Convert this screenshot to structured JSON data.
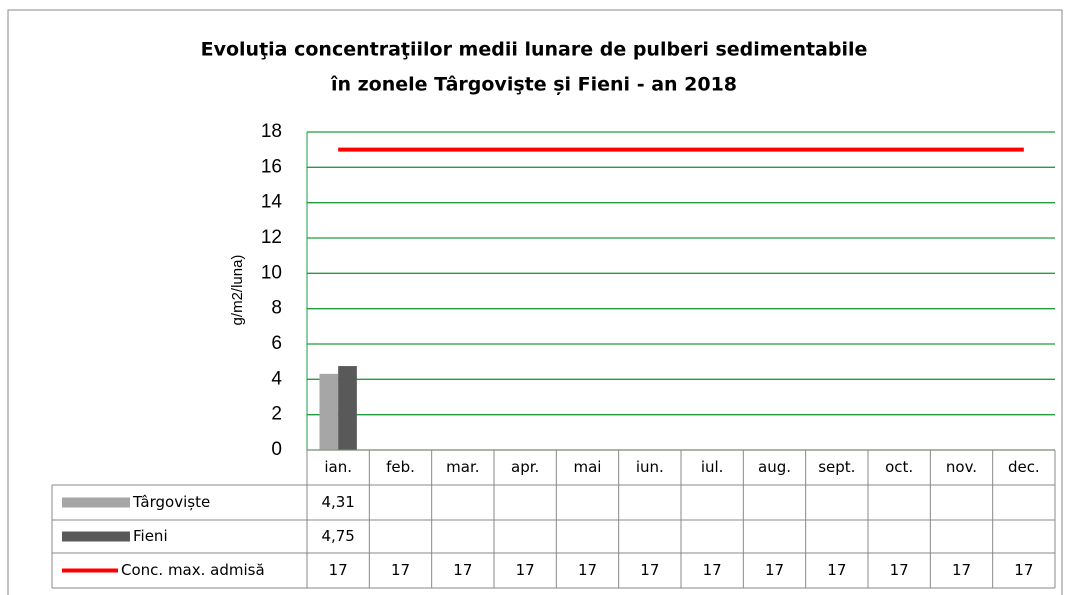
{
  "chart_data": {
    "type": "bar",
    "title": [
      "Evoluţia concentraţiilor medii lunare de pulberi sedimentabile",
      "în zonele Târgovişte și Fieni - an 2018"
    ],
    "y_label": "g/m2/luna)",
    "categories": [
      "ian.",
      "feb.",
      "mar.",
      "apr.",
      "mai",
      "iun.",
      "iul.",
      "aug.",
      "sept.",
      "oct.",
      "nov.",
      "dec."
    ],
    "series": [
      {
        "name": "Târgoviște",
        "type": "bar",
        "color": "#a6a6a6",
        "values": [
          4.31,
          null,
          null,
          null,
          null,
          null,
          null,
          null,
          null,
          null,
          null,
          null
        ],
        "value_labels": [
          "4,31",
          null,
          null,
          null,
          null,
          null,
          null,
          null,
          null,
          null,
          null,
          null
        ]
      },
      {
        "name": "Fieni",
        "type": "bar",
        "color": "#595959",
        "values": [
          4.75,
          null,
          null,
          null,
          null,
          null,
          null,
          null,
          null,
          null,
          null,
          null
        ],
        "value_labels": [
          "4,75",
          null,
          null,
          null,
          null,
          null,
          null,
          null,
          null,
          null,
          null,
          null
        ]
      },
      {
        "name": "Conc. max. admisă",
        "type": "line",
        "color": "#ff0000",
        "values": [
          17,
          17,
          17,
          17,
          17,
          17,
          17,
          17,
          17,
          17,
          17,
          17
        ]
      }
    ],
    "ylim": [
      0,
      18
    ],
    "yticks": [
      0,
      2,
      4,
      6,
      8,
      10,
      12,
      14,
      16,
      18
    ],
    "grid": true,
    "grid_color": "#1e9e3e"
  }
}
